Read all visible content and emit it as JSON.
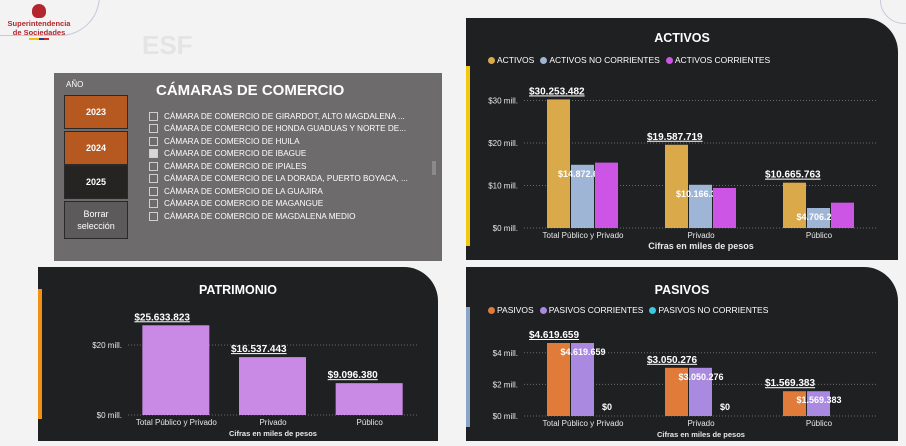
{
  "header": {
    "logo_line1": "Superintendencia",
    "logo_line2": "de Sociedades",
    "page_title": "ESF"
  },
  "filter": {
    "year_label": "AÑO",
    "title": "CÁMARAS DE COMERCIO",
    "years": [
      "2023",
      "2024",
      "2025"
    ],
    "clear_label": "Borrar selección",
    "chambers": [
      "CÁMARA DE COMERCIO DE GIRARDOT, ALTO MAGDALENA ...",
      "CÁMARA DE COMERCIO DE HONDA GUADUAS Y NORTE DE...",
      "CÁMARA DE COMERCIO DE HUILA",
      "CÁMARA DE COMERCIO DE IBAGUE",
      "CÁMARA DE COMERCIO DE IPIALES",
      "CÁMARA DE COMERCIO DE LA DORADA, PUERTO BOYACA, ...",
      "CÁMARA DE COMERCIO DE LA GUAJIRA",
      "CÁMARA DE COMERCIO DE MAGANGUE",
      "CÁMARA DE COMERCIO DE MAGDALENA MEDIO"
    ],
    "checked_index": 3
  },
  "chart_data": [
    {
      "id": "activos",
      "type": "bar",
      "title": "ACTIVOS",
      "accent": "#f2c811",
      "categories": [
        "Total Público y Privado",
        "Privado",
        "Público"
      ],
      "xlabel": "Cifras en miles de pesos",
      "yticks": [
        "$30 mill.",
        "$20 mill.",
        "$10 mill.",
        "$0 mill."
      ],
      "ytick_values": [
        30,
        20,
        10,
        0
      ],
      "ylim": [
        0,
        32
      ],
      "series": [
        {
          "name": "ACTIVOS",
          "color": "#d9a94a",
          "values": [
            30.253482,
            19.587719,
            10.665763
          ],
          "labels": [
            "$30.253.482",
            "$19.587.719",
            "$10.665.763"
          ]
        },
        {
          "name": "ACTIVOS NO CORRIENTES",
          "color": "#9fb5d6",
          "values": [
            14.872608,
            10.16637,
            4.706238
          ],
          "labels": [
            "$14.872.608",
            "$10.166.370",
            "$4.706.238"
          ]
        },
        {
          "name": "ACTIVOS CORRIENTES",
          "color": "#cc55e6",
          "values": [
            15.380874,
            9.421349,
            5.959525
          ],
          "labels": [
            "",
            "",
            ""
          ]
        }
      ]
    },
    {
      "id": "patrimonio",
      "type": "bar",
      "title": "PATRIMONIO",
      "accent": "#f29111",
      "categories": [
        "Total Público y Privado",
        "Privado",
        "Público"
      ],
      "xlabel": "Cifras en miles de pesos",
      "yticks": [
        "$20 mill.",
        "$0 mill."
      ],
      "ytick_values": [
        20,
        0
      ],
      "ylim": [
        0,
        28
      ],
      "series": [
        {
          "name": "PATRIMONIO",
          "color": "#c98ae6",
          "values": [
            25.633823,
            16.537443,
            9.09638
          ],
          "labels": [
            "$25.633.823",
            "$16.537.443",
            "$9.096.380"
          ]
        }
      ]
    },
    {
      "id": "pasivos",
      "type": "bar",
      "title": "PASIVOS",
      "accent": "#8aa4c8",
      "categories": [
        "Total Público y Privado",
        "Privado",
        "Público"
      ],
      "xlabel": "Cifras en miles de pesos",
      "yticks": [
        "$4 mill.",
        "$2 mill.",
        "$0 mill."
      ],
      "ytick_values": [
        4,
        2,
        0
      ],
      "ylim": [
        0,
        5
      ],
      "series": [
        {
          "name": "PASIVOS",
          "color": "#e07b3a",
          "values": [
            4.619659,
            3.050276,
            1.569383
          ],
          "labels": [
            "$4.619.659",
            "$3.050.276",
            "$1.569.383"
          ]
        },
        {
          "name": "PASIVOS CORRIENTES",
          "color": "#a98ae0",
          "values": [
            4.619659,
            3.050276,
            1.569383
          ],
          "labels": [
            "$4.619.659",
            "$3.050.276",
            "$1.569.383"
          ]
        },
        {
          "name": "PASIVOS NO CORRIENTES",
          "color": "#3cc8e0",
          "values": [
            0,
            0,
            0
          ],
          "labels": [
            "$0",
            "$0",
            ""
          ]
        }
      ]
    }
  ]
}
